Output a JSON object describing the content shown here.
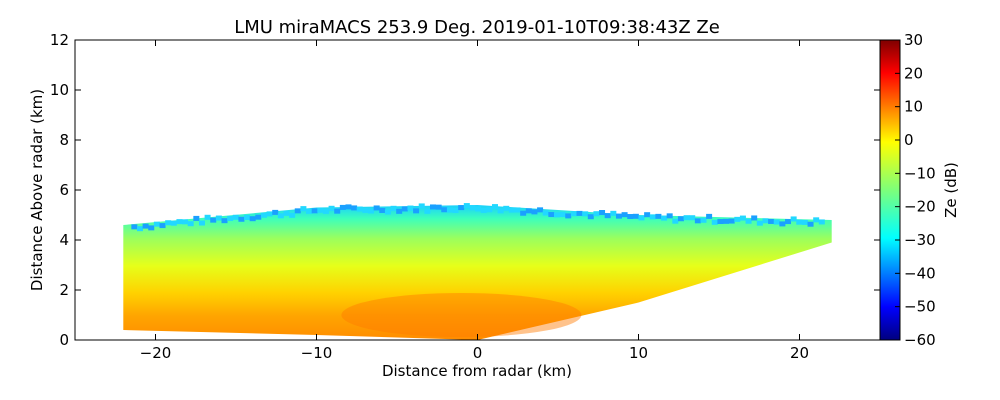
{
  "chart_data": {
    "type": "heatmap",
    "title": "LMU miraMACS 253.9 Deg. 2019-01-10T09:38:43Z  Ze",
    "xlabel": "Distance from radar (km)",
    "ylabel": "Distance Above radar  (km)",
    "xlim": [
      -25,
      25
    ],
    "ylim": [
      0,
      12
    ],
    "xticks": [
      -20,
      -10,
      0,
      10,
      20
    ],
    "xtick_labels": [
      "−20",
      "−10",
      "0",
      "10",
      "20"
    ],
    "yticks": [
      0,
      2,
      4,
      6,
      8,
      10,
      12
    ],
    "ytick_labels": [
      "0",
      "2",
      "4",
      "6",
      "8",
      "10",
      "12"
    ],
    "grid": false,
    "colorbar": {
      "label": "Ze (dB)",
      "colormap": "jet",
      "range": [
        -60,
        30
      ],
      "ticks": [
        30,
        20,
        10,
        0,
        -10,
        -20,
        -30,
        -40,
        -50,
        -60
      ],
      "tick_labels": [
        "30",
        "20",
        "10",
        "0",
        "−10",
        "−20",
        "−30",
        "−40",
        "−50",
        "−60"
      ]
    },
    "echo_region": {
      "description_points": [
        {
          "x": -22,
          "y_bottom": 0.4,
          "y_top": 4.6
        },
        {
          "x": -10,
          "y_bottom": 0.2,
          "y_top": 5.3
        },
        {
          "x": 0,
          "y_bottom": 0.0,
          "y_top": 5.4
        },
        {
          "x": 10,
          "y_bottom": 1.5,
          "y_top": 5.0
        },
        {
          "x": 22,
          "y_bottom": 3.9,
          "y_top": 4.8
        }
      ],
      "reflectivity_profile_dB": [
        {
          "height": 0.3,
          "ze": 8
        },
        {
          "height": 1.5,
          "ze": 3
        },
        {
          "height": 2.5,
          "ze": -5
        },
        {
          "height": 3.5,
          "ze": -13
        },
        {
          "height": 4.5,
          "ze": -22
        },
        {
          "height": 5.2,
          "ze": -32
        }
      ]
    }
  }
}
